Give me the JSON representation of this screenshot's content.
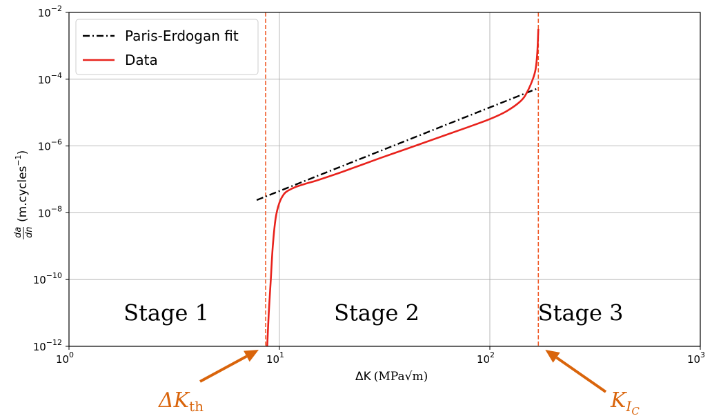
{
  "chart_data": {
    "type": "line",
    "xscale": "log",
    "yscale": "log",
    "xlim": [
      1,
      1000
    ],
    "ylim": [
      1e-12,
      0.01
    ],
    "xticks": [
      {
        "value": 1,
        "base": "10",
        "exp": "0"
      },
      {
        "value": 10,
        "base": "10",
        "exp": "1"
      },
      {
        "value": 100,
        "base": "10",
        "exp": "2"
      },
      {
        "value": 1000,
        "base": "10",
        "exp": "3"
      }
    ],
    "yticks": [
      {
        "value": 1e-12,
        "base": "10",
        "exp": "−12"
      },
      {
        "value": 1e-10,
        "base": "10",
        "exp": "−10"
      },
      {
        "value": 1e-08,
        "base": "10",
        "exp": "−8"
      },
      {
        "value": 1e-06,
        "base": "10",
        "exp": "−6"
      },
      {
        "value": 0.0001,
        "base": "10",
        "exp": "−4"
      },
      {
        "value": 0.01,
        "base": "10",
        "exp": "−2"
      }
    ],
    "xlabel": {
      "sym": "ΔK",
      "unit": "MPa√m"
    },
    "ylabel": {
      "num": "da",
      "den": "dn",
      "text": "(m.cycles",
      "exp": "−1",
      "close": ")"
    },
    "grid": true,
    "legend": {
      "position": "top-left"
    },
    "series": [
      {
        "name": "Paris-Erdogan fit",
        "color": "#000000",
        "style": "dash-dot",
        "x": [
          7.8,
          170
        ],
        "y": [
          2.4e-08,
          5.4e-05
        ]
      },
      {
        "name": "Data",
        "color": "#e8221c",
        "style": "solid",
        "x": [
          8.75,
          8.9,
          9.1,
          9.3,
          9.6,
          10.0,
          10.5,
          11.0,
          12.0,
          13.5,
          15,
          20,
          30,
          40,
          60,
          80,
          100,
          120,
          140,
          150,
          160,
          165,
          168,
          170
        ],
        "y": [
          1e-12,
          1e-11,
          1e-10,
          1e-09,
          7e-09,
          2e-08,
          3.6e-08,
          4.6e-08,
          6e-08,
          7.6e-08,
          9.2e-08,
          1.7e-07,
          4.3e-07,
          8.1e-07,
          2e-06,
          3.8e-06,
          6.4e-06,
          1.1e-05,
          2.2e-05,
          4e-05,
          0.0001,
          0.0002,
          0.0006,
          0.0032
        ]
      }
    ],
    "vlines": [
      {
        "x": 8.6,
        "color": "#f05a28",
        "style": "dashed"
      },
      {
        "x": 170,
        "color": "#f05a28",
        "style": "dashed"
      }
    ],
    "regions": [
      {
        "label": "Stage 1",
        "x": 2.9,
        "y": 1e-11
      },
      {
        "label": "Stage 2",
        "x": 29,
        "y": 1e-11
      },
      {
        "label": "Stage 3",
        "x": 270,
        "y": 1e-11
      }
    ],
    "annotations": [
      {
        "base": "ΔK",
        "sub": "th",
        "sub_sub": "",
        "target_x": 8.6
      },
      {
        "base": "K",
        "sub": "I",
        "sub_sub": "C",
        "target_x": 170
      }
    ],
    "annotation_color": "#d9640b"
  }
}
